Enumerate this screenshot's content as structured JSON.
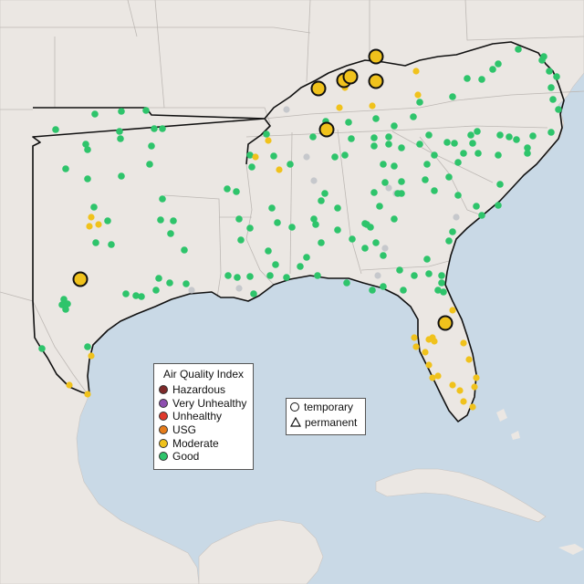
{
  "aqi_legend": {
    "title": "Air Quality Index",
    "categories": [
      {
        "label": "Hazardous",
        "color": "#7e2a2a"
      },
      {
        "label": "Very Unhealthy",
        "color": "#8e4fb0"
      },
      {
        "label": "Unhealthy",
        "color": "#e03a2c"
      },
      {
        "label": "USG",
        "color": "#e57c1a"
      },
      {
        "label": "Moderate",
        "color": "#f0c21c"
      },
      {
        "label": "Good",
        "color": "#2ec46b"
      }
    ]
  },
  "type_legend": {
    "temporary": "temporary",
    "permanent": "permanent"
  },
  "colors": {
    "water": "#c9d9e6",
    "land": "#ebe7e3",
    "good": "#2ec46b",
    "moderate": "#f0c21c",
    "inactive": "#c6c8cc"
  }
}
